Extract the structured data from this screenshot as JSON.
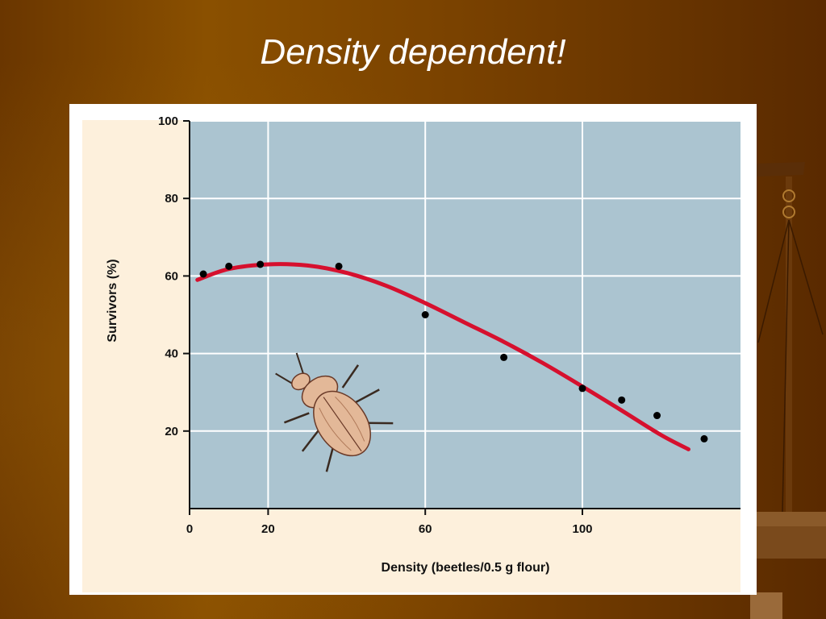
{
  "slide": {
    "title": "Density dependent!"
  },
  "colors": {
    "plot_background": "#abc4d0",
    "frame_background": "#fdf0dc",
    "curve": "#d6102e",
    "points": "#000000"
  },
  "icons": [
    "beetle-illustration",
    "balance-scale-decoration"
  ],
  "chart_data": {
    "type": "scatter",
    "title": "",
    "xlabel": "Density (beetles/0.5 g flour)",
    "ylabel": "Survivors (%)",
    "xlim": [
      0,
      140
    ],
    "ylim": [
      0,
      100
    ],
    "x_ticks": [
      0,
      20,
      60,
      100
    ],
    "y_ticks": [
      20,
      40,
      60,
      80,
      100
    ],
    "grid": true,
    "series": [
      {
        "type": "scatter",
        "x": [
          3.5,
          10,
          18,
          38,
          60,
          80,
          100,
          110,
          119,
          131
        ],
        "y": [
          60.5,
          62.5,
          63,
          62.5,
          50,
          39,
          31,
          28,
          24,
          18
        ]
      },
      {
        "type": "line",
        "x": [
          2,
          10,
          20,
          30,
          40,
          50,
          60,
          70,
          80,
          90,
          100,
          110,
          120,
          127
        ],
        "y": [
          59,
          61.8,
          63,
          62.7,
          60.8,
          57.5,
          53,
          48,
          43,
          37.5,
          31.5,
          25.3,
          19,
          15.3
        ]
      }
    ]
  }
}
